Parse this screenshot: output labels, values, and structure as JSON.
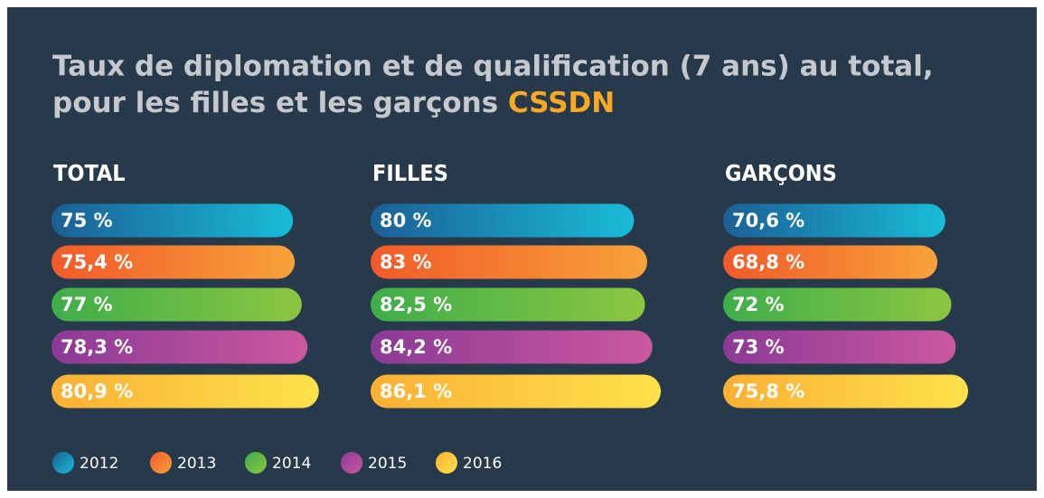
{
  "title": "Taux de diplomation et de qualification (7 ans) au total,",
  "title_line2": "pour les filles et les garçons",
  "title_highlight": "CSSDN",
  "categories": [
    "2012",
    "2013",
    "2014",
    "2015",
    "2016"
  ],
  "colors": [
    "#1b5f95",
    "#f15a29",
    "#3dae4a",
    "#8b3a96",
    "#fbb034"
  ],
  "colors_end": [
    "#19bcd8",
    "#f7a23a",
    "#8dc641",
    "#cb589f",
    "#fde24b"
  ],
  "chart_data": [
    {
      "type": "bar",
      "title": "TOTAL",
      "values": [
        75,
        75.4,
        77,
        78.3,
        80.9
      ],
      "value_labels": [
        "75 %",
        "75,4 %",
        "77 %",
        "78,3 %",
        "80,9 %"
      ],
      "xlim": [
        20,
        90
      ]
    },
    {
      "type": "bar",
      "title": "FILLES",
      "values": [
        80,
        83,
        82.5,
        84.2,
        86.1
      ],
      "value_labels": [
        "80 %",
        "83 %",
        "82,5 %",
        "84,2 %",
        "86,1 %"
      ],
      "xlim": [
        20,
        90
      ]
    },
    {
      "type": "bar",
      "title": "GARÇONS",
      "values": [
        70.6,
        68.8,
        72,
        73,
        75.8
      ],
      "value_labels": [
        "70,6 %",
        "68,8 %",
        "72 %",
        "73 %",
        "75,8 %"
      ],
      "xlim": [
        20,
        90
      ]
    }
  ]
}
